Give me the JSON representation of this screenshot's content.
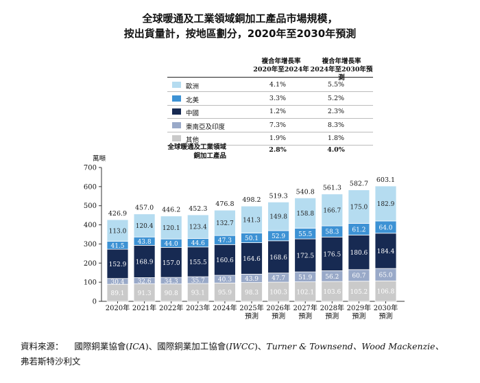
{
  "title": {
    "line1": "全球暖通及工業領域銅加工產品市場規模，",
    "line2": "按出貨量計，按地區劃分，2020年至2030年預測"
  },
  "growth_table": {
    "col1_header_l1": "複合年增長率",
    "col1_header_l2": "2020年至2024年",
    "col2_header_l1": "複合年增長率",
    "col2_header_l2": "2024年至2030年預測",
    "rows": [
      {
        "region": "歐洲",
        "cagr_2020_2024": "4.1%",
        "cagr_2024_2030": "5.5%",
        "color": "#b5dcf0"
      },
      {
        "region": "北美",
        "cagr_2020_2024": "3.3%",
        "cagr_2024_2030": "5.2%",
        "color": "#3d92d4"
      },
      {
        "region": "中國",
        "cagr_2020_2024": "1.2%",
        "cagr_2024_2030": "2.3%",
        "color": "#172a52"
      },
      {
        "region": "東南亞及印度",
        "cagr_2020_2024": "7.3%",
        "cagr_2024_2030": "8.3%",
        "color": "#99a9c8"
      },
      {
        "region": "其他",
        "cagr_2020_2024": "1.9%",
        "cagr_2024_2030": "1.8%",
        "color": "#cacaca"
      }
    ],
    "total_label_l1": "全球暖通及工業領域",
    "total_label_l2": "銅加工產品",
    "total_cagr_2020_2024": "2.8%",
    "total_cagr_2024_2030": "4.0%"
  },
  "chart_data": {
    "type": "bar",
    "stacked": true,
    "unit_label": "萬噸",
    "categories": [
      [
        "2020年"
      ],
      [
        "2021年"
      ],
      [
        "2022年"
      ],
      [
        "2023年"
      ],
      [
        "2024年"
      ],
      [
        "2025年",
        "預測"
      ],
      [
        "2026年",
        "預測"
      ],
      [
        "2027年",
        "預測"
      ],
      [
        "2028年",
        "預測"
      ],
      [
        "2029年",
        "預測"
      ],
      [
        "2030年",
        "預測"
      ]
    ],
    "series": [
      {
        "name": "其他",
        "color": "#cacaca",
        "labelColor": "#ffffff",
        "values": [
          89.1,
          91.3,
          90.8,
          93.1,
          95.9,
          98.3,
          100.3,
          102.1,
          103.6,
          105.2,
          106.8
        ]
      },
      {
        "name": "東南亞及印度",
        "color": "#99a9c8",
        "labelColor": "#ffffff",
        "values": [
          30.4,
          32.6,
          34.3,
          35.7,
          40.3,
          43.9,
          47.7,
          51.9,
          56.2,
          60.7,
          65.0
        ]
      },
      {
        "name": "中國",
        "color": "#172a52",
        "labelColor": "#ffffff",
        "values": [
          152.9,
          168.9,
          157.0,
          155.5,
          160.6,
          164.6,
          168.6,
          172.5,
          176.5,
          180.6,
          184.4
        ]
      },
      {
        "name": "北美",
        "color": "#3d92d4",
        "labelColor": "#ffffff",
        "values": [
          41.5,
          43.8,
          44.0,
          44.6,
          47.3,
          50.1,
          52.9,
          55.5,
          58.3,
          61.2,
          64.0
        ]
      },
      {
        "name": "歐洲",
        "color": "#b5dcf0",
        "labelColor": "#222222",
        "values": [
          113.0,
          120.4,
          120.1,
          123.4,
          132.7,
          141.3,
          149.8,
          158.8,
          166.7,
          175.0,
          182.9
        ]
      }
    ],
    "totals": [
      426.9,
      457.0,
      446.2,
      452.3,
      476.8,
      498.2,
      519.3,
      540.8,
      561.3,
      582.7,
      603.1
    ],
    "ylim": [
      0,
      700
    ],
    "yticks": [
      0,
      100,
      200,
      300,
      400,
      500,
      600,
      700
    ],
    "grid": false,
    "legend": "top-left table"
  },
  "footer": {
    "label": "資料來源：",
    "text_a": "國際銅業協會(",
    "ica": "ICA",
    "text_b": ")、國際銅業加工協會(",
    "iwcc": "IWCC",
    "text_c": ")、",
    "rest": "Turner & Townsend、Wood Mackenzie、",
    "line2": "弗若斯特沙利文"
  }
}
